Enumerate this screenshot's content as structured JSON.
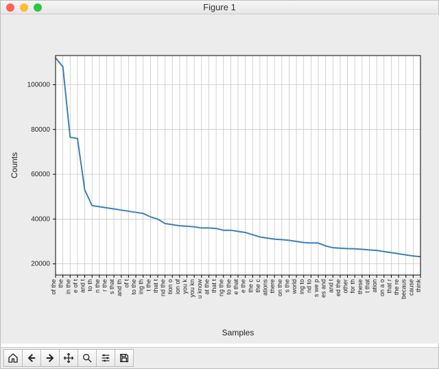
{
  "window": {
    "title": "Figure 1"
  },
  "traffic_colors": {
    "close": "#ff5f57",
    "min": "#febc2e",
    "max": "#28c840"
  },
  "toolbar": {
    "icons": [
      "home",
      "back",
      "forward",
      "pan",
      "zoom",
      "configure",
      "save"
    ]
  },
  "chart": {
    "type": "line",
    "xlabel": "Samples",
    "ylabel": "Counts",
    "line_color": "#3b7fb5",
    "line_width": 2.0,
    "background_color": "#ffffff",
    "grid_color": "#bfbfbf",
    "axis_color": "#000000",
    "tick_color": "#000000",
    "label_fontsize": 12,
    "tick_fontsize": 10,
    "xtick_fontsize": 9,
    "ylim": [
      15000,
      113000
    ],
    "yticks": [
      20000,
      40000,
      60000,
      80000,
      100000
    ],
    "x_categories": [
      "of the",
      " the ",
      " in the",
      "e of t",
      " and t",
      " to th",
      "n the ",
      "r the ",
      "s that",
      "and th",
      " of t",
      "to the",
      "ing th",
      "t the ",
      "that t",
      "nd the",
      "tion o",
      "ion of",
      " you k",
      "you kn",
      "u know",
      "at the",
      "that t",
      "ng the",
      "to the",
      "e that",
      "e the ",
      " the c",
      " the c",
      "ations",
      "there ",
      "on the",
      "s the ",
      " world",
      "ing to",
      "nd to ",
      "s we p",
      "es and",
      " and t",
      "ed the",
      "other ",
      "for th",
      "these ",
      "t that",
      "ation ",
      "on a o",
      "that r",
      "the re",
      "becaus",
      "cause ",
      "think "
    ],
    "values": [
      112000,
      108000,
      76500,
      76000,
      53000,
      46000,
      45500,
      45000,
      44500,
      44000,
      43500,
      43000,
      42500,
      41000,
      40000,
      38000,
      37500,
      37000,
      36800,
      36500,
      36000,
      36000,
      35800,
      35000,
      35000,
      34500,
      34000,
      33000,
      32000,
      31500,
      31000,
      30800,
      30500,
      30000,
      29500,
      29300,
      29300,
      28000,
      27200,
      27000,
      26800,
      26700,
      26500,
      26200,
      26000,
      25500,
      25000,
      24500,
      24000,
      23500,
      23200
    ]
  }
}
